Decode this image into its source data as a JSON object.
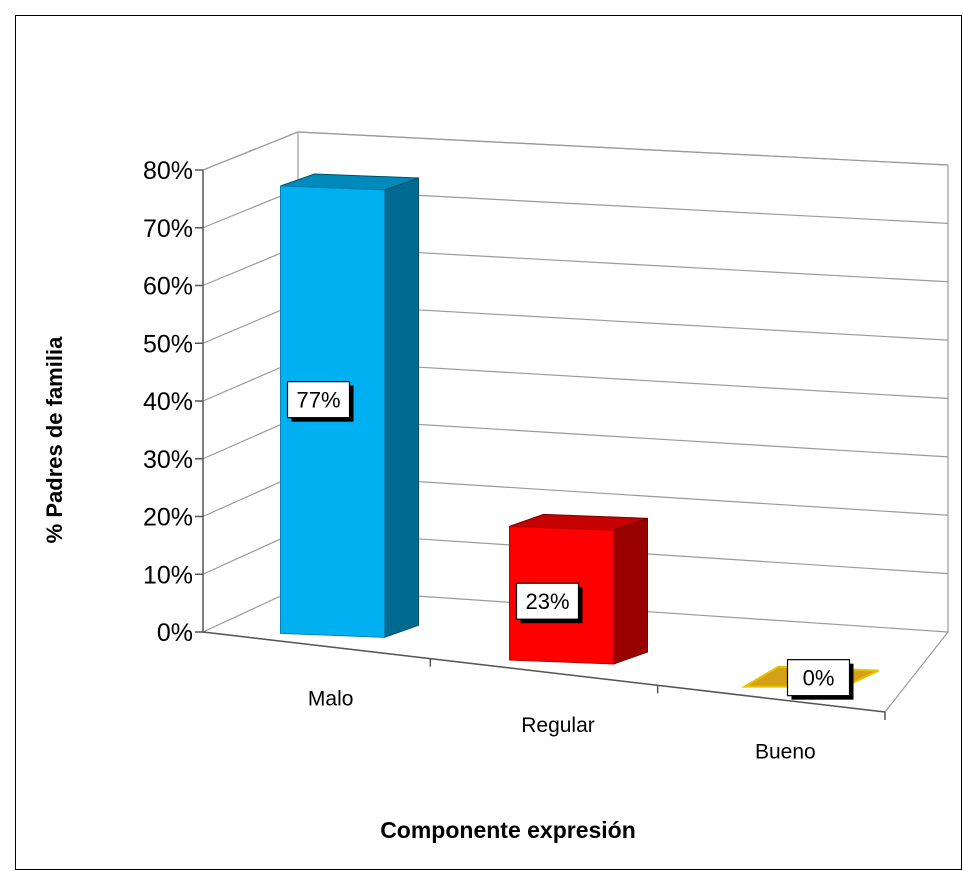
{
  "chart_data": {
    "type": "bar",
    "title": "",
    "xlabel": "Componente expresión",
    "ylabel": "% Padres de familia",
    "categories": [
      "Malo",
      "Regular",
      "Bueno"
    ],
    "values": [
      77,
      23,
      0
    ],
    "data_labels": [
      "77%",
      "23%",
      "0%"
    ],
    "ylim": [
      0,
      80
    ],
    "yticks": [
      0,
      10,
      20,
      30,
      40,
      50,
      60,
      70,
      80
    ],
    "ytick_labels": [
      "0%",
      "10%",
      "20%",
      "30%",
      "40%",
      "50%",
      "60%",
      "70%",
      "80%"
    ],
    "grid": true,
    "style": "3d-perspective",
    "colors": [
      "#00b0f0",
      "#ff0000",
      "#d4a017"
    ]
  }
}
